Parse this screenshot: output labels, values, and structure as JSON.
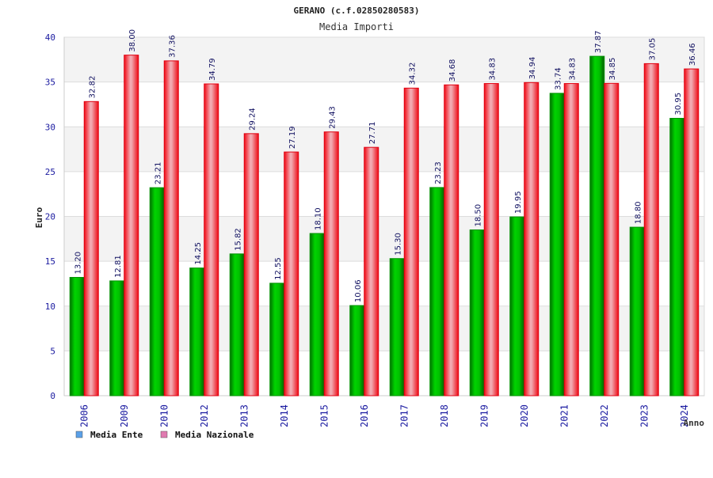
{
  "chart_data": {
    "type": "bar",
    "title": "GERANO (c.f.02850280583)",
    "subtitle": "Media Importi",
    "xlabel": "Anno",
    "ylabel": "Euro",
    "ylim": [
      0,
      40
    ],
    "ytick_step": 5,
    "grid": true,
    "legend_position": "bottom-left",
    "categories": [
      "2006",
      "2009",
      "2010",
      "2012",
      "2013",
      "2014",
      "2015",
      "2016",
      "2017",
      "2018",
      "2019",
      "2020",
      "2021",
      "2022",
      "2023",
      "2024"
    ],
    "series": [
      {
        "name": "Media Ente",
        "color": "#00b000",
        "legend_color": "#5aa0e8",
        "values": [
          13.2,
          12.81,
          23.21,
          14.25,
          15.82,
          12.55,
          18.1,
          10.06,
          15.3,
          23.23,
          18.5,
          19.95,
          33.74,
          37.87,
          18.8,
          30.95
        ],
        "labels": [
          "13.20",
          "12.81",
          "23.21",
          "14.25",
          "15.82",
          "12.55",
          "18.10",
          "10.06",
          "15.30",
          "23.23",
          "18.50",
          "19.95",
          "33.74",
          "37.87",
          "18.80",
          "30.95"
        ]
      },
      {
        "name": "Media Nazionale",
        "color": "#e8202a",
        "legend_color": "#e07ab0",
        "values": [
          32.82,
          38.0,
          37.36,
          34.79,
          29.24,
          27.19,
          29.43,
          27.71,
          34.32,
          34.68,
          34.83,
          34.94,
          34.83,
          34.85,
          37.05,
          36.46
        ],
        "labels": [
          "32.82",
          "38.00",
          "37.36",
          "34.79",
          "29.24",
          "27.19",
          "29.43",
          "27.71",
          "34.32",
          "34.68",
          "34.83",
          "34.94",
          "34.83",
          "34.85",
          "37.05",
          "36.46"
        ]
      }
    ]
  }
}
